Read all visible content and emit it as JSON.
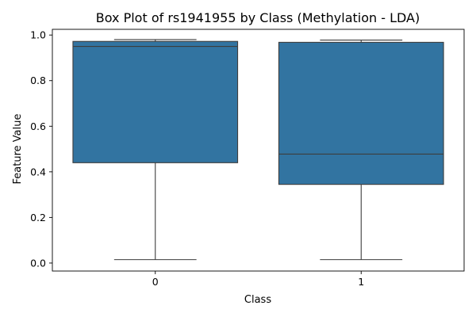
{
  "chart_data": {
    "type": "box",
    "title": "Box Plot of rs1941955 by Class (Methylation - LDA)",
    "xlabel": "Class",
    "ylabel": "Feature Value",
    "categories": [
      "0",
      "1"
    ],
    "boxes": [
      {
        "category": "0",
        "whisker_low": 0.015,
        "q1": 0.44,
        "median": 0.95,
        "q3": 0.972,
        "whisker_high": 0.98
      },
      {
        "category": "1",
        "whisker_low": 0.015,
        "q1": 0.345,
        "median": 0.478,
        "q3": 0.968,
        "whisker_high": 0.978
      }
    ],
    "yticks": [
      0.0,
      0.2,
      0.4,
      0.6,
      0.8,
      1.0
    ],
    "ytick_labels": [
      "0.0",
      "0.2",
      "0.4",
      "0.6",
      "0.8",
      "1.0"
    ],
    "ylim": [
      -0.035,
      1.025
    ],
    "grid": false,
    "box_color": "#3274a1",
    "line_color": "#3d3d3d"
  }
}
